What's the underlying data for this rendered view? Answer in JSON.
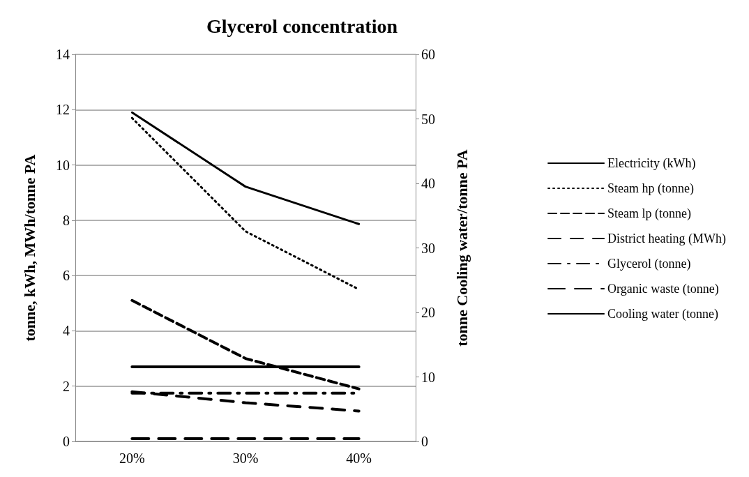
{
  "chart_data": {
    "type": "line",
    "title": "Glycerol concentration",
    "ylabel": "tonne, kWh, MWh/tonne PA",
    "y2label": "tonne Cooling water/tonne PA",
    "categories": [
      "20%",
      "30%",
      "40%"
    ],
    "series": [
      {
        "name": "Electricity (kWh)",
        "color": "#000000",
        "line_style": "solid",
        "values": [
          2.7,
          2.7,
          2.7
        ]
      },
      {
        "name": "Steam hp (tonne)",
        "color": "#000000",
        "line_style": "dotted",
        "values": [
          11.7,
          7.6,
          5.5
        ]
      },
      {
        "name": "Steam lp (tonne)",
        "color": "#000000",
        "line_style": "dashed",
        "values": [
          5.1,
          3.0,
          1.9
        ]
      },
      {
        "name": "District heating (MWh)",
        "color": "#000000",
        "line_style": "dashed",
        "values": [
          1.8,
          1.4,
          1.1
        ]
      },
      {
        "name": "Glycerol (tonne)",
        "color": "#000000",
        "line_style": "dashed",
        "values": [
          1.75,
          1.75,
          1.75
        ]
      },
      {
        "name": "Organic waste (tonne)",
        "color": "#000000",
        "line_style": "dashed",
        "values": [
          0.1,
          0.1,
          0.1
        ]
      },
      {
        "name": "Cooling water (tonne)",
        "color": "#000000",
        "line_style": "solid",
        "axis": "y2",
        "values": [
          51,
          39.5,
          33.7
        ]
      }
    ],
    "ylim": [
      0,
      14
    ],
    "yticks": [
      0,
      2,
      4,
      6,
      8,
      10,
      12,
      14
    ],
    "y2lim": [
      0,
      60
    ],
    "y2ticks": [
      0,
      10,
      20,
      30,
      40,
      50,
      60
    ],
    "grid": "y",
    "legend": "right",
    "marker": "none"
  }
}
